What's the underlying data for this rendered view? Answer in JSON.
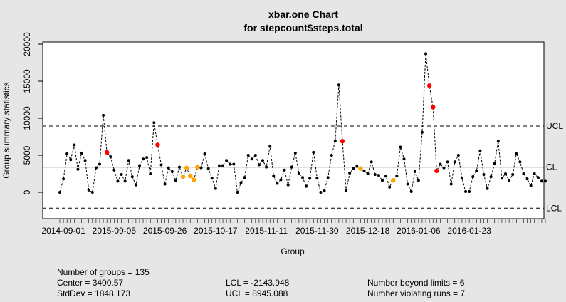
{
  "chart_data": {
    "type": "line",
    "title": "xbar.one Chart",
    "subtitle": "for stepcount$steps.total",
    "xlabel": "Group",
    "ylabel": "Group summary statistics",
    "ylim": [
      -3000,
      20000
    ],
    "y_ticks": [
      0,
      5000,
      10000,
      15000,
      20000
    ],
    "x_tick_labels": [
      {
        "index": 1,
        "label": "2014-09-01"
      },
      {
        "index": 15,
        "label": "2015-09-05"
      },
      {
        "index": 29,
        "label": "2015-09-26"
      },
      {
        "index": 43,
        "label": "2015-10-17"
      },
      {
        "index": 57,
        "label": "2015-11-11"
      },
      {
        "index": 71,
        "label": "2015-11-30"
      },
      {
        "index": 85,
        "label": "2015-12-18"
      },
      {
        "index": 99,
        "label": "2016-01-06"
      },
      {
        "index": 113,
        "label": "2016-01-23"
      }
    ],
    "control_limits": {
      "center": 3400.57,
      "ucl": 8945.088,
      "lcl": -2143.948,
      "ucl_label": "UCL",
      "cl_label": "CL",
      "lcl_label": "LCL"
    },
    "series": [
      {
        "values": [
          0,
          1800,
          5200,
          4400,
          6400,
          3100,
          5300,
          4300,
          300,
          0,
          3300,
          3800,
          10400,
          5400,
          4800,
          3000,
          1500,
          2400,
          1500,
          4300,
          2100,
          1000,
          3600,
          4500,
          4700,
          2500,
          9400,
          6400,
          3700,
          1100,
          3300,
          2800,
          1600,
          3400,
          2100,
          3300,
          2200,
          1700,
          3400,
          3300,
          5200,
          3200,
          1900,
          500,
          3600,
          3600,
          4300,
          3800,
          3800,
          0,
          1300,
          2000,
          5000,
          4500,
          5000,
          3700,
          4300,
          3400,
          6200,
          2200,
          1200,
          1700,
          3000,
          1000,
          3400,
          5300,
          2600,
          2000,
          800,
          1900,
          5400,
          1900,
          0,
          200,
          2000,
          5000,
          6900,
          14500,
          6900,
          200,
          2600,
          3200,
          3500,
          3200,
          2900,
          2500,
          4100,
          2400,
          2300,
          1600,
          2200,
          700,
          1600,
          2200,
          6100,
          4500,
          1100,
          100,
          2800,
          1600,
          8100,
          18700,
          14400,
          11500,
          2900,
          3800,
          3300,
          4100,
          1100,
          4100,
          5000,
          1900,
          100,
          100,
          2100,
          2900,
          5600,
          2400,
          500,
          2100,
          3900,
          6900,
          1900,
          2500,
          1600,
          2400,
          5200,
          4100,
          2500,
          1800,
          900,
          2500,
          2000,
          1500,
          1500
        ]
      }
    ],
    "point_colors": {
      "normal": "#000000",
      "beyond_limits": "#ff0000",
      "violating_runs": "#ffa500"
    },
    "beyond_limits_index": [
      13,
      27,
      78,
      102,
      103,
      104
    ],
    "violating_runs_index": [
      34,
      35,
      36,
      37,
      38,
      83,
      92
    ]
  },
  "stats": {
    "groups": "Number of groups = 135",
    "center": "Center = 3400.57",
    "stddev": "StdDev = 1848.173",
    "lcl": "LCL = -2143.948",
    "ucl": "UCL = 8945.088",
    "beyond": "Number beyond limits = 6",
    "violating": "Number violating runs = 7"
  }
}
